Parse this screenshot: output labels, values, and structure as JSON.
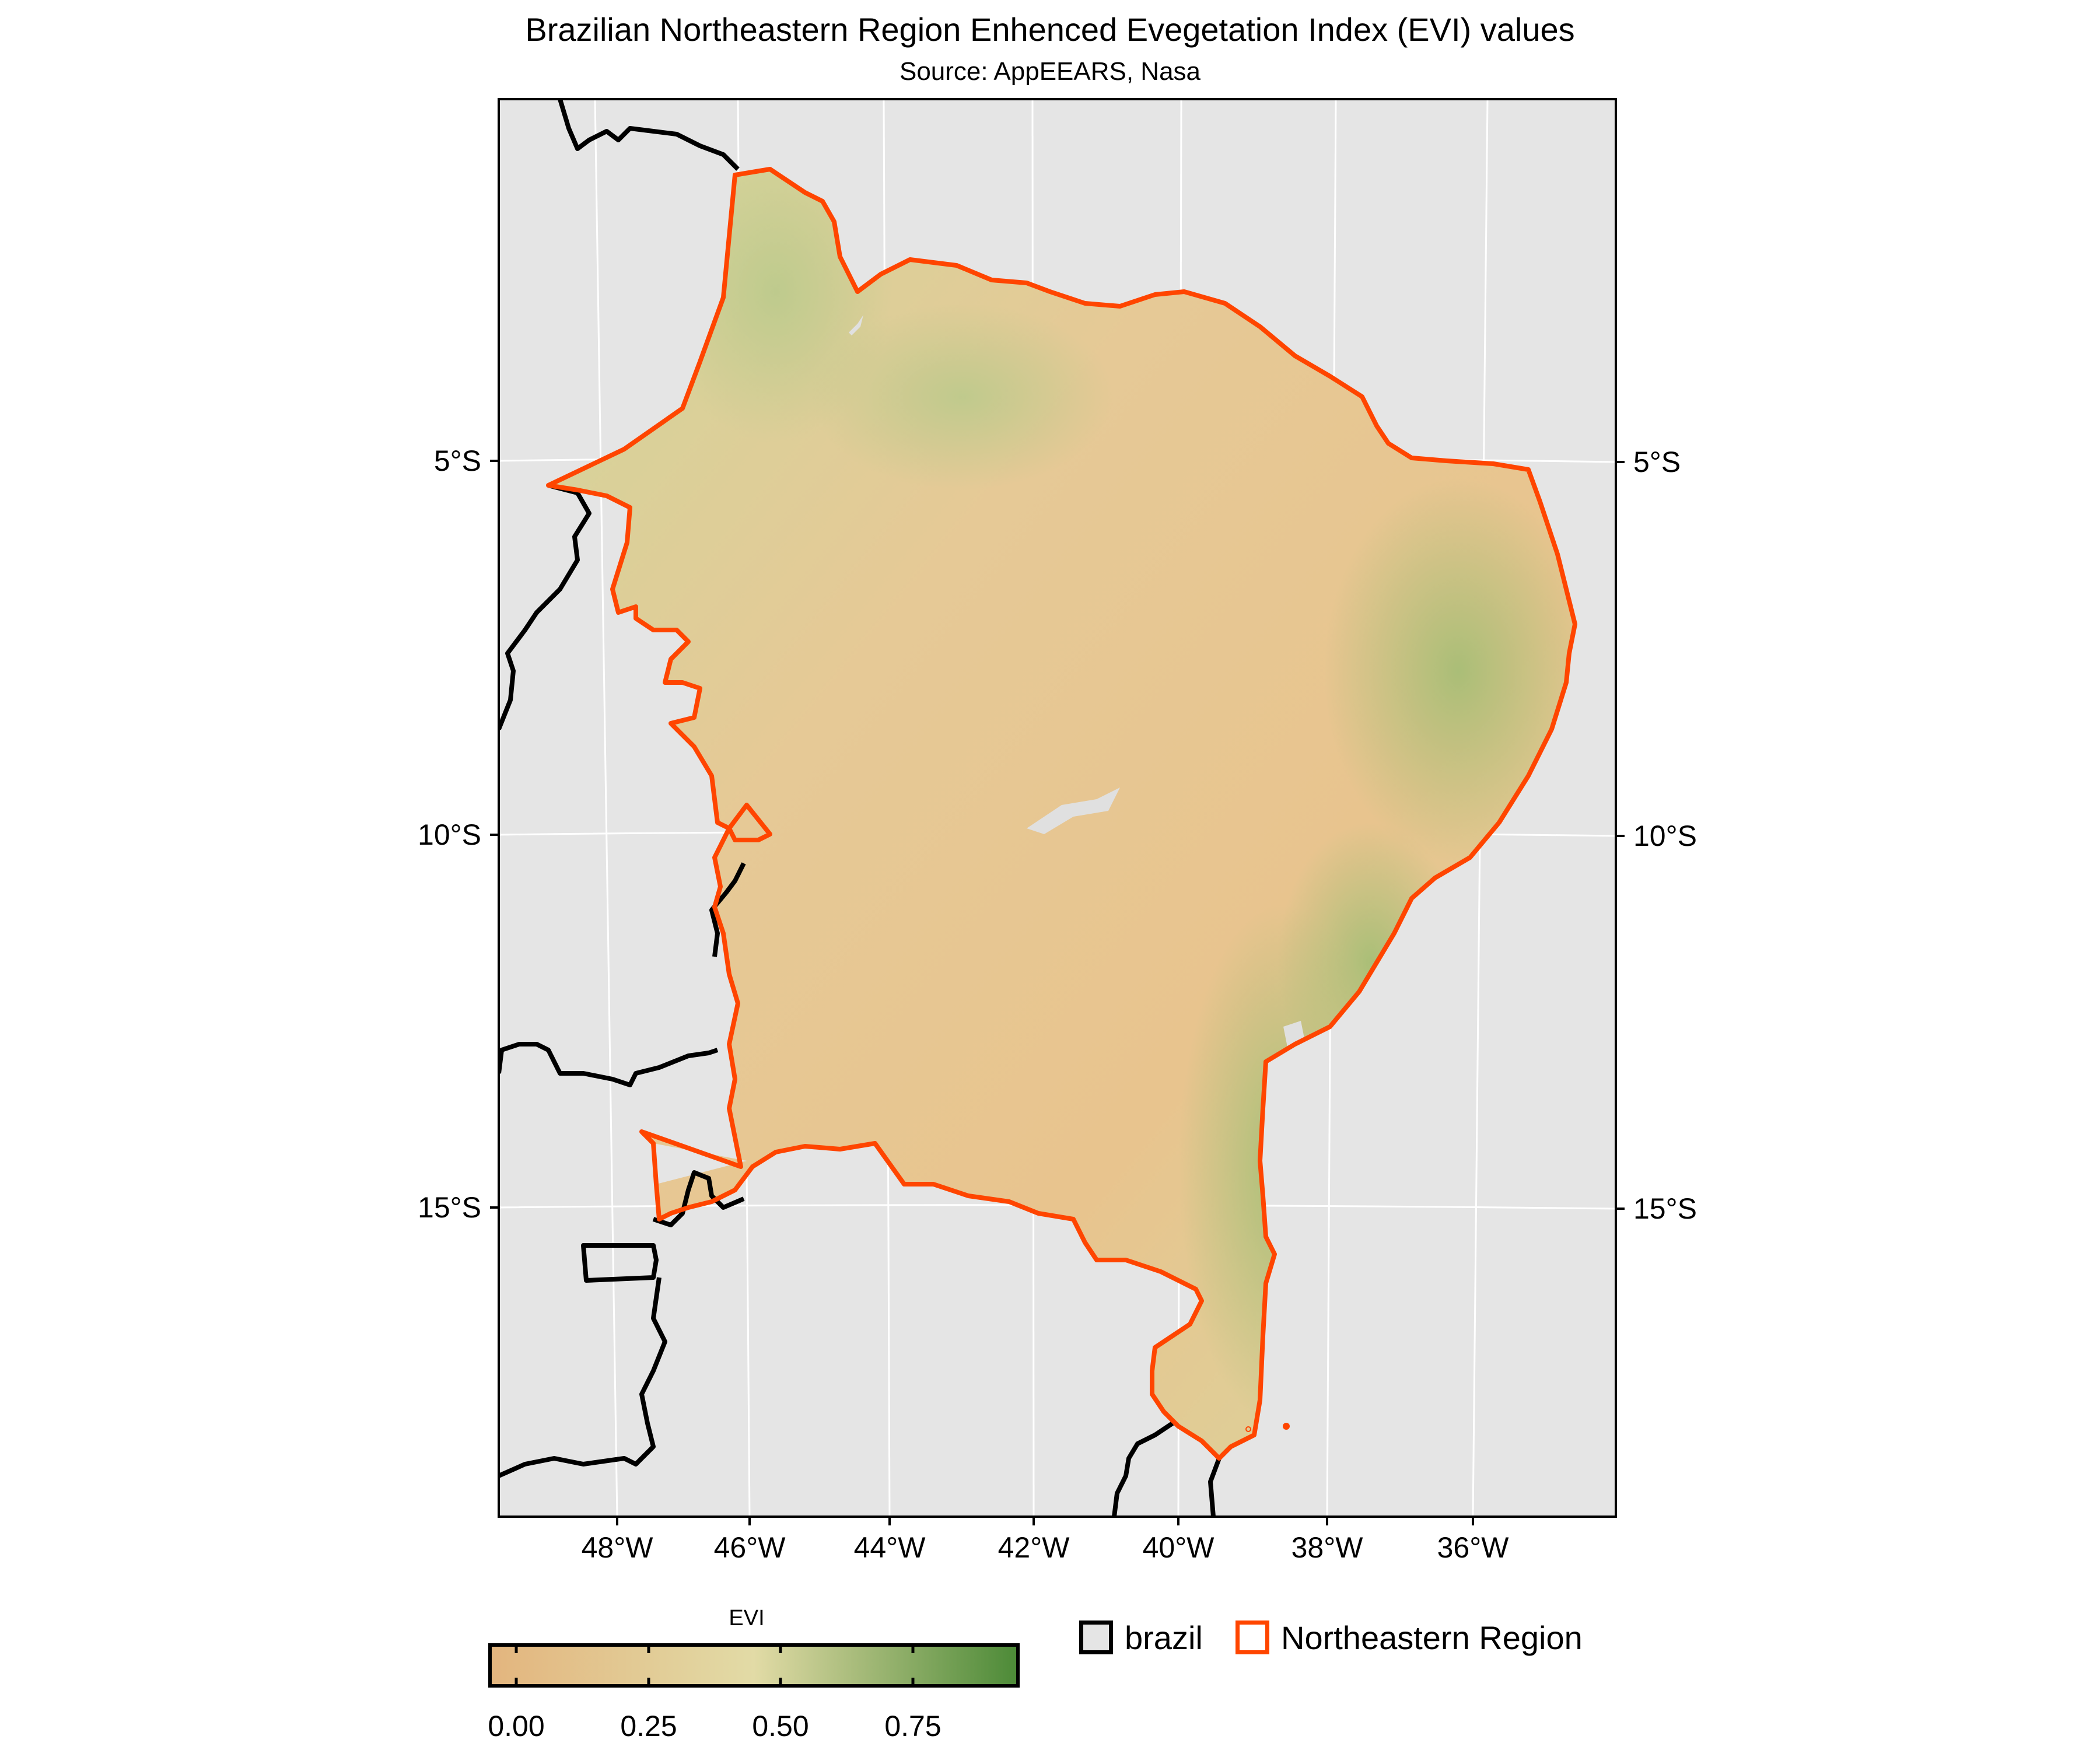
{
  "title": "Brazilian Northeastern Region Enhenced Evegetation Index (EVI) values",
  "subtitle": "Source: AppEEARS, Nasa",
  "colors": {
    "panel_background": "#e5e5e5",
    "gridline": "#ffffff",
    "brazil_border": "#000000",
    "region_border": "#ff4500",
    "evi_low": "#e3b57e",
    "evi_mid": "#e2dba6",
    "evi_high": "#4c8a37"
  },
  "axes": {
    "y_ticks": [
      "5°S",
      "10°S",
      "15°S"
    ],
    "x_ticks": [
      "48°W",
      "46°W",
      "44°W",
      "42°W",
      "40°W",
      "38°W",
      "36°W"
    ]
  },
  "colorbar": {
    "title": "EVI",
    "labels": [
      "0.00",
      "0.25",
      "0.50",
      "0.75"
    ],
    "range": [
      -0.05,
      0.95
    ]
  },
  "legend": {
    "items": [
      {
        "label": "brazil",
        "color": "#000000"
      },
      {
        "label": "Northeastern Region",
        "color": "#ff4500"
      }
    ]
  }
}
